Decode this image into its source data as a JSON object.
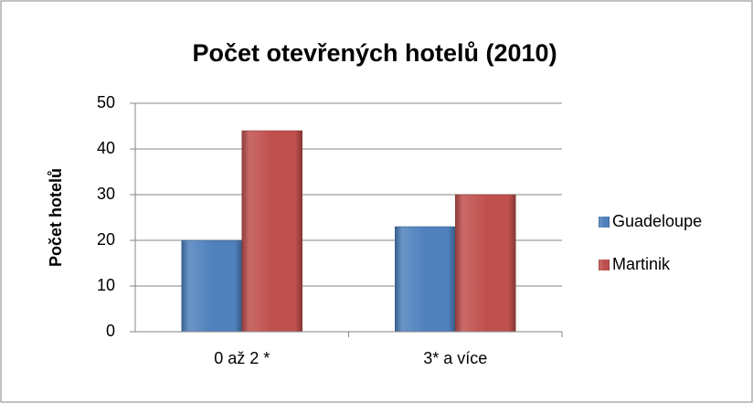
{
  "chart_data": {
    "type": "bar",
    "title": "Počet otevřených hotelů (2010)",
    "y_label": "Počet hotelů",
    "categories": [
      "0 až 2 *",
      "3* a více"
    ],
    "series": [
      {
        "name": "Guadeloupe",
        "color": "#4f81bd",
        "values": [
          20,
          23
        ]
      },
      {
        "name": "Martinik",
        "color": "#c0504d",
        "values": [
          44,
          30
        ]
      }
    ],
    "ylim": [
      0,
      50
    ],
    "yticks": [
      0,
      10,
      20,
      30,
      40,
      50
    ],
    "grid": true,
    "legend": "right"
  }
}
